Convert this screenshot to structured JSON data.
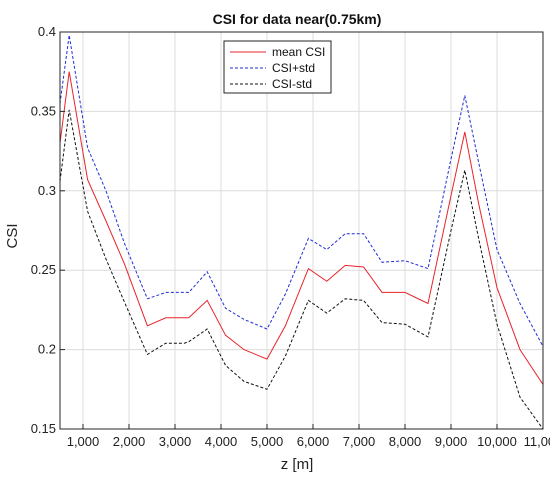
{
  "chart_data": {
    "type": "line",
    "title": "CSI for data near(0.75km)",
    "xlabel": "z [m]",
    "ylabel": "CSI",
    "xlim": [
      500,
      11000
    ],
    "ylim": [
      0.15,
      0.4
    ],
    "xticks": [
      1000,
      2000,
      3000,
      4000,
      5000,
      6000,
      7000,
      8000,
      9000,
      10000,
      11000
    ],
    "xtick_labels": [
      "1,000",
      "2,000",
      "3,000",
      "4,000",
      "5,000",
      "6,000",
      "7,000",
      "8,000",
      "9,000",
      "10,000",
      "11,000"
    ],
    "yticks": [
      0.15,
      0.2,
      0.25,
      0.3,
      0.35,
      0.4
    ],
    "ytick_labels": [
      "0.15",
      "0.2",
      "0.25",
      "0.3",
      "0.35",
      "0.4"
    ],
    "grid": true,
    "legend_position": "top-center",
    "x": [
      500,
      700,
      1100,
      1500,
      1900,
      2400,
      2800,
      3200,
      3300,
      3700,
      4100,
      4500,
      5000,
      5400,
      5900,
      6300,
      6700,
      7100,
      7500,
      8000,
      8500,
      9000,
      9300,
      9600,
      10000,
      10500,
      11000
    ],
    "series": [
      {
        "name": "mean CSI",
        "color": "#e8242b",
        "dash": "solid",
        "values": [
          0.33,
          0.375,
          0.307,
          0.281,
          0.254,
          0.215,
          0.22,
          0.22,
          0.22,
          0.231,
          0.209,
          0.2,
          0.194,
          0.215,
          0.251,
          0.243,
          0.253,
          0.252,
          0.236,
          0.236,
          0.229,
          0.297,
          0.337,
          0.292,
          0.239,
          0.2,
          0.178
        ]
      },
      {
        "name": "CSI+std",
        "color": "#1f2dd6",
        "dash": "dashed",
        "values": [
          0.355,
          0.398,
          0.327,
          0.3,
          0.267,
          0.232,
          0.236,
          0.236,
          0.236,
          0.249,
          0.226,
          0.219,
          0.213,
          0.235,
          0.27,
          0.263,
          0.273,
          0.273,
          0.255,
          0.256,
          0.251,
          0.32,
          0.36,
          0.318,
          0.263,
          0.229,
          0.202
        ]
      },
      {
        "name": "CSI-std",
        "color": "#111111",
        "dash": "dashed",
        "values": [
          0.306,
          0.351,
          0.287,
          0.257,
          0.23,
          0.197,
          0.204,
          0.204,
          0.205,
          0.213,
          0.19,
          0.18,
          0.175,
          0.196,
          0.231,
          0.223,
          0.232,
          0.231,
          0.217,
          0.216,
          0.208,
          0.275,
          0.313,
          0.27,
          0.216,
          0.17,
          0.15
        ]
      }
    ]
  }
}
